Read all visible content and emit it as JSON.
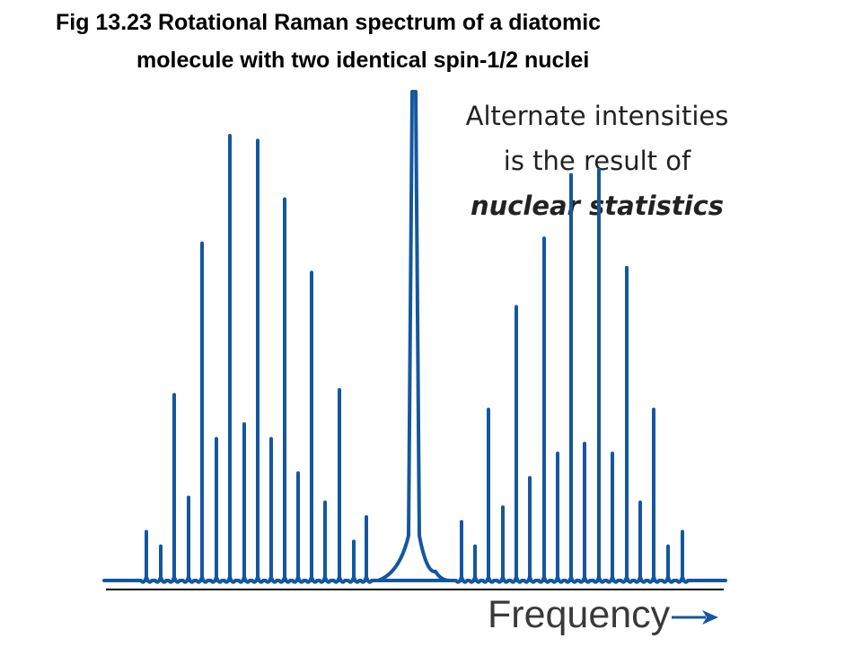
{
  "title": {
    "line1": "Fig 13.23  Rotational Raman spectrum of a diatomic",
    "line2": "molecule with two identical spin-1/2 nuclei"
  },
  "annotation": {
    "line1": "Alternate intensities",
    "line2": "is the result of",
    "line3": "nuclear statistics"
  },
  "colors": {
    "spectrum": "#1457a0",
    "baseline": "#000000",
    "arrow": "#1457a0"
  },
  "arrow_icon": "right-arrow-icon",
  "chart_data": {
    "type": "line",
    "title": "Fig 13.23  Rotational Raman spectrum of a diatomic molecule with two identical spin-1/2 nuclei",
    "xlabel": "Frequency",
    "ylabel": "",
    "axis_ticks": "none",
    "grid": false,
    "note": "Alternate intensities is the result of nuclear statistics",
    "rayleigh": {
      "x": 461,
      "intensity": 1.0
    },
    "stokes_lines": [
      {
        "x": 163,
        "intensity": 0.1
      },
      {
        "x": 179,
        "intensity": 0.07
      },
      {
        "x": 194,
        "intensity": 0.38
      },
      {
        "x": 210,
        "intensity": 0.17
      },
      {
        "x": 225,
        "intensity": 0.69
      },
      {
        "x": 241,
        "intensity": 0.29
      },
      {
        "x": 256,
        "intensity": 0.91
      },
      {
        "x": 272,
        "intensity": 0.32
      },
      {
        "x": 287,
        "intensity": 0.9
      },
      {
        "x": 302,
        "intensity": 0.29
      },
      {
        "x": 317,
        "intensity": 0.78
      },
      {
        "x": 332,
        "intensity": 0.22
      },
      {
        "x": 347,
        "intensity": 0.63
      },
      {
        "x": 362,
        "intensity": 0.16
      },
      {
        "x": 378,
        "intensity": 0.39
      },
      {
        "x": 394,
        "intensity": 0.08
      },
      {
        "x": 408,
        "intensity": 0.13
      }
    ],
    "anti_stokes_lines": [
      {
        "x": 514,
        "intensity": 0.12
      },
      {
        "x": 529,
        "intensity": 0.07
      },
      {
        "x": 544,
        "intensity": 0.35
      },
      {
        "x": 560,
        "intensity": 0.15
      },
      {
        "x": 575,
        "intensity": 0.56
      },
      {
        "x": 590,
        "intensity": 0.21
      },
      {
        "x": 606,
        "intensity": 0.7
      },
      {
        "x": 621,
        "intensity": 0.26
      },
      {
        "x": 636,
        "intensity": 0.83
      },
      {
        "x": 651,
        "intensity": 0.28
      },
      {
        "x": 667,
        "intensity": 0.84
      },
      {
        "x": 682,
        "intensity": 0.26
      },
      {
        "x": 698,
        "intensity": 0.64
      },
      {
        "x": 713,
        "intensity": 0.16
      },
      {
        "x": 728,
        "intensity": 0.35
      },
      {
        "x": 744,
        "intensity": 0.07
      },
      {
        "x": 760,
        "intensity": 0.1
      }
    ]
  }
}
